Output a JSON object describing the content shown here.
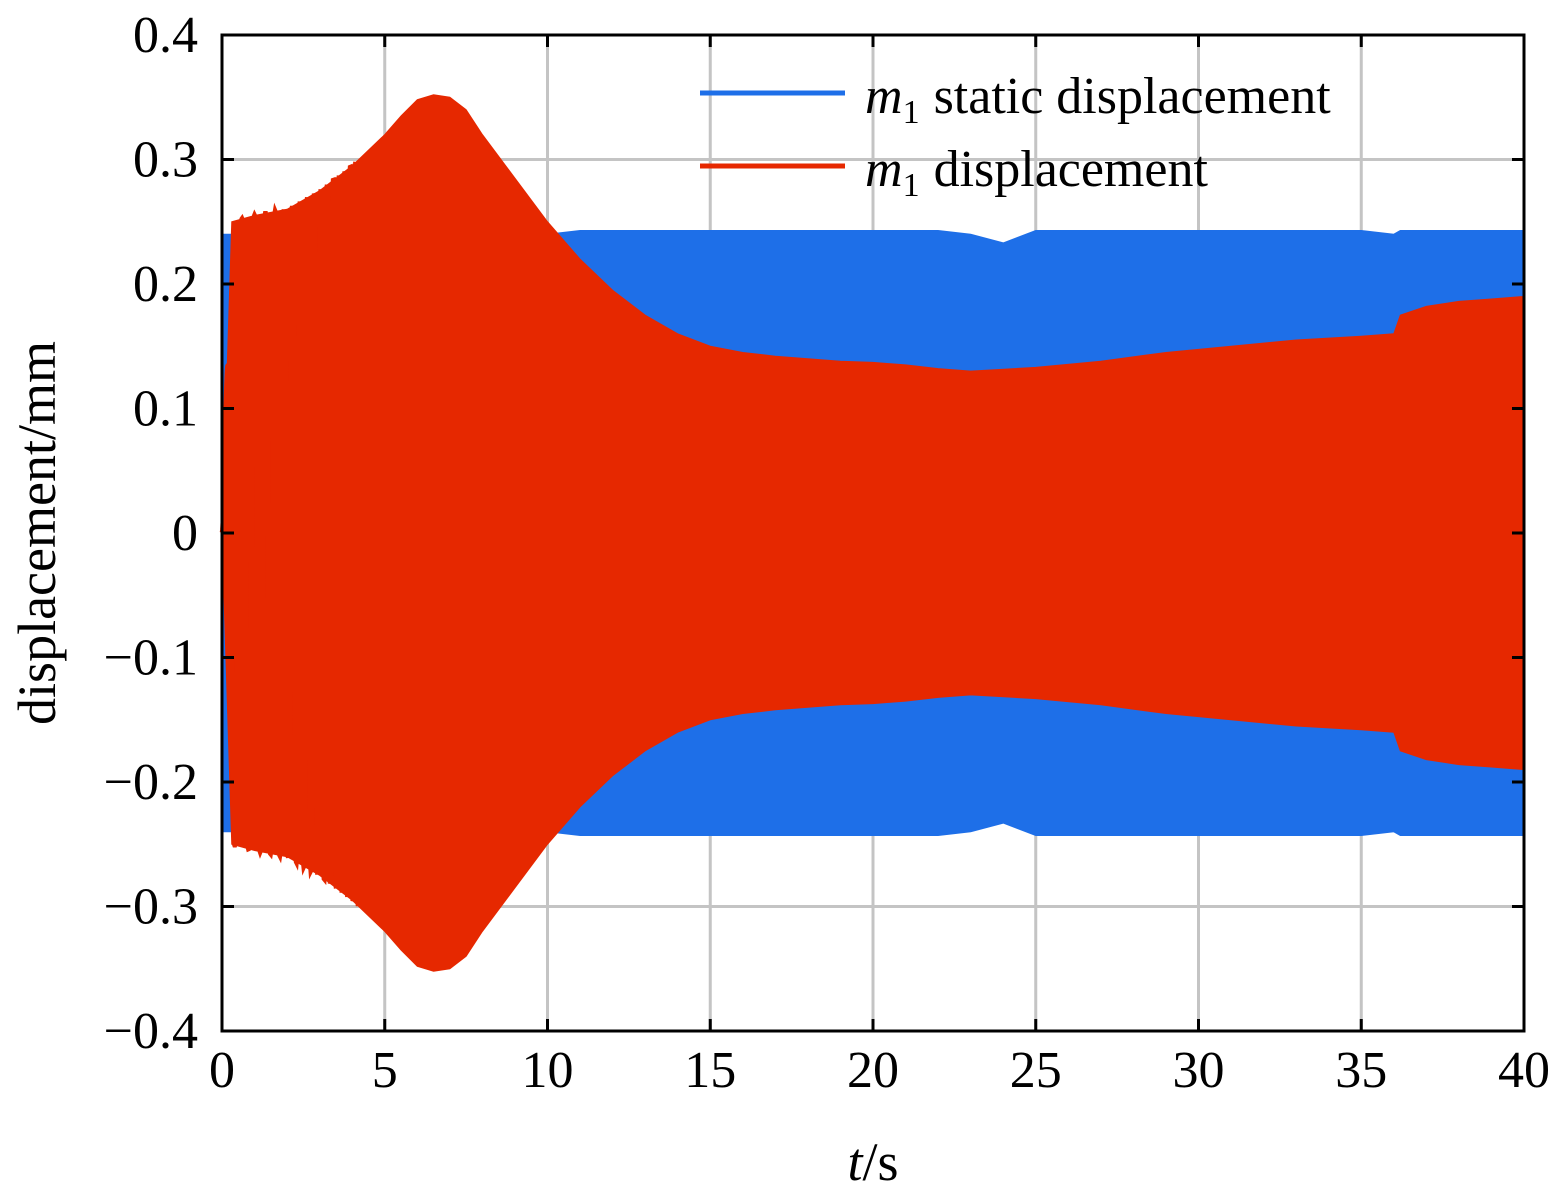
{
  "chart_data": {
    "type": "line",
    "xlabel_var": "t",
    "xlabel_unit": "/s",
    "ylabel": "displacement/mm",
    "xlim": [
      0,
      40
    ],
    "ylim": [
      -0.4,
      0.4
    ],
    "xticks": [
      0,
      5,
      10,
      15,
      20,
      25,
      30,
      35,
      40
    ],
    "yticks": [
      0.4,
      0.3,
      0.2,
      0.1,
      0,
      -0.1,
      -0.2,
      -0.3,
      -0.4
    ],
    "ytick_labels": [
      "0.4",
      "0.3",
      "0.2",
      "0.1",
      "0",
      "−0.1",
      "−0.2",
      "−0.3",
      "−0.4"
    ],
    "grid": true,
    "legend_position": "top-right",
    "series": [
      {
        "name": "static displacement",
        "name_prefix": "m",
        "name_subscript": "1",
        "color": "#1e6fe8",
        "envelope_t": [
          0,
          10,
          11,
          12,
          13,
          14,
          15,
          16,
          17,
          18,
          19,
          20,
          21,
          22,
          23,
          24,
          25,
          26,
          27,
          28,
          29,
          30,
          31,
          32,
          33,
          34,
          35,
          36,
          36.2,
          37,
          38,
          39,
          40
        ],
        "envelope_upper": [
          0.24,
          0.24,
          0.243,
          0.243,
          0.243,
          0.243,
          0.243,
          0.243,
          0.243,
          0.243,
          0.243,
          0.243,
          0.243,
          0.243,
          0.24,
          0.233,
          0.243,
          0.243,
          0.243,
          0.243,
          0.243,
          0.243,
          0.243,
          0.243,
          0.243,
          0.243,
          0.243,
          0.24,
          0.243,
          0.243,
          0.243,
          0.243,
          0.243
        ],
        "envelope_lower": [
          -0.24,
          -0.24,
          -0.243,
          -0.243,
          -0.243,
          -0.243,
          -0.243,
          -0.243,
          -0.243,
          -0.243,
          -0.243,
          -0.243,
          -0.243,
          -0.243,
          -0.24,
          -0.233,
          -0.243,
          -0.243,
          -0.243,
          -0.243,
          -0.243,
          -0.243,
          -0.243,
          -0.243,
          -0.243,
          -0.243,
          -0.243,
          -0.24,
          -0.243,
          -0.243,
          -0.243,
          -0.243,
          -0.243
        ]
      },
      {
        "name": "displacement",
        "name_prefix": "m",
        "name_subscript": "1",
        "color": "#e62800",
        "envelope_t": [
          0,
          0.3,
          1,
          2,
          3,
          4,
          5,
          5.5,
          6,
          6.5,
          7,
          7.5,
          8,
          9,
          10,
          11,
          12,
          13,
          14,
          15,
          16,
          17,
          18,
          19,
          20,
          21,
          22,
          23,
          25,
          27,
          29,
          31,
          33,
          35,
          36,
          36.2,
          37,
          38,
          39,
          40
        ],
        "envelope_upper": [
          0,
          0.25,
          0.255,
          0.26,
          0.275,
          0.295,
          0.32,
          0.335,
          0.348,
          0.352,
          0.35,
          0.34,
          0.32,
          0.285,
          0.25,
          0.22,
          0.195,
          0.175,
          0.16,
          0.15,
          0.145,
          0.142,
          0.14,
          0.138,
          0.137,
          0.135,
          0.132,
          0.13,
          0.133,
          0.138,
          0.145,
          0.15,
          0.155,
          0.158,
          0.16,
          0.175,
          0.182,
          0.186,
          0.188,
          0.19
        ],
        "envelope_lower": [
          0,
          -0.25,
          -0.255,
          -0.26,
          -0.275,
          -0.295,
          -0.32,
          -0.335,
          -0.348,
          -0.352,
          -0.35,
          -0.34,
          -0.32,
          -0.285,
          -0.25,
          -0.22,
          -0.195,
          -0.175,
          -0.16,
          -0.15,
          -0.145,
          -0.142,
          -0.14,
          -0.138,
          -0.137,
          -0.135,
          -0.132,
          -0.13,
          -0.133,
          -0.138,
          -0.145,
          -0.15,
          -0.155,
          -0.158,
          -0.16,
          -0.175,
          -0.182,
          -0.186,
          -0.188,
          -0.19
        ]
      }
    ]
  }
}
